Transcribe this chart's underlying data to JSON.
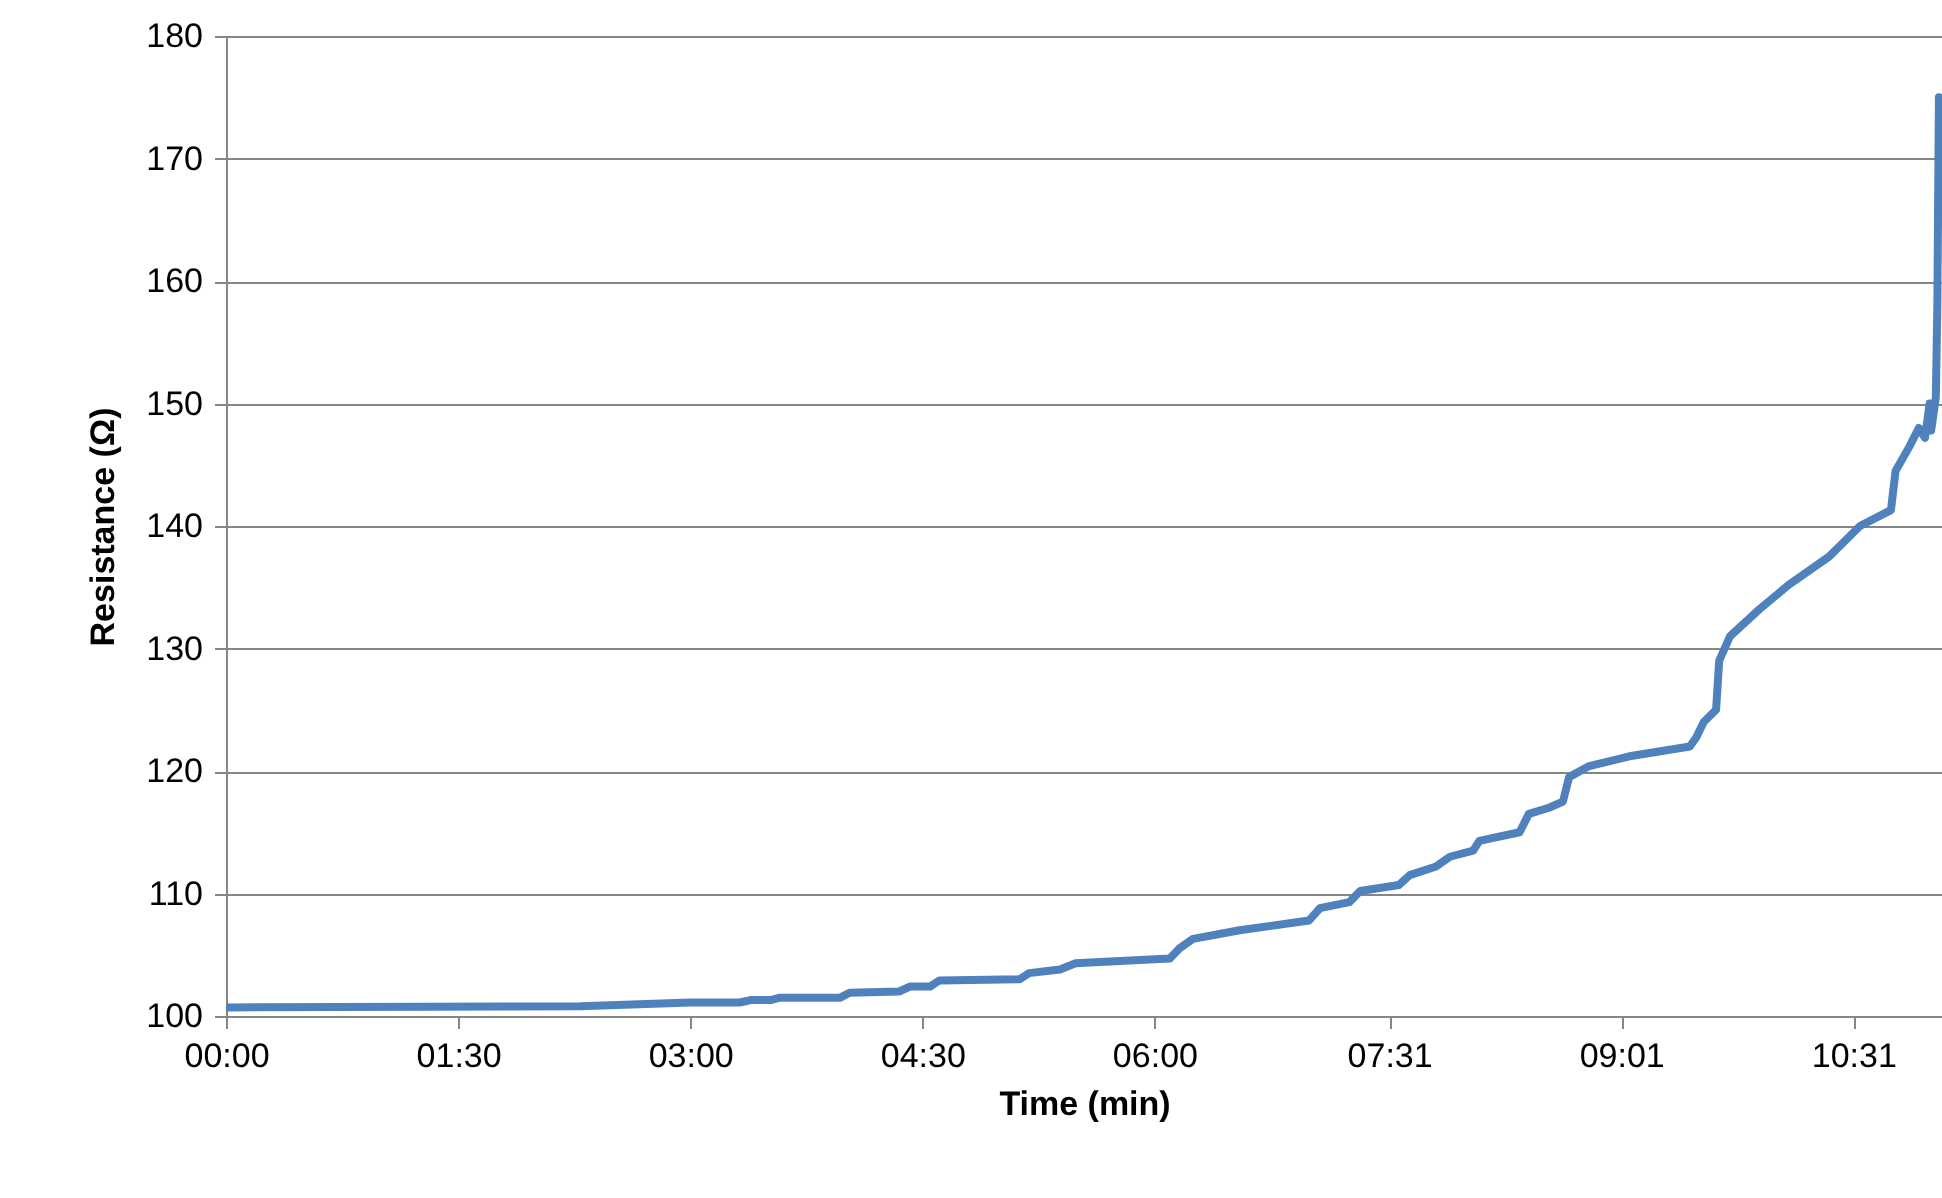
{
  "chart_data": {
    "type": "line",
    "xlabel": "Time (min)",
    "ylabel": "Resistance (Ω)",
    "x": [
      0,
      2.29,
      3.0,
      3.32,
      3.39,
      3.52,
      3.58,
      3.97,
      4.03,
      4.35,
      4.42,
      4.55,
      4.61,
      5.13,
      5.19,
      5.39,
      5.49,
      6.1,
      6.16,
      6.25,
      6.55,
      7.0,
      7.07,
      7.26,
      7.33,
      7.58,
      7.65,
      7.82,
      7.91,
      8.06,
      8.1,
      8.36,
      8.42,
      8.55,
      8.64,
      8.68,
      8.81,
      9.07,
      9.46,
      9.5,
      9.55,
      9.63,
      9.65,
      9.72,
      9.91,
      10.1,
      10.36,
      10.56,
      10.76,
      10.79,
      10.88,
      10.94,
      10.98,
      11.01,
      11.02,
      11.05,
      11.06,
      11.07
    ],
    "series": [
      {
        "color": "#4f81bd",
        "values": [
          100.7,
          100.8,
          101.1,
          101.1,
          101.3,
          101.3,
          101.5,
          101.5,
          101.9,
          102.0,
          102.4,
          102.4,
          102.9,
          103.0,
          103.5,
          103.8,
          104.3,
          104.7,
          105.5,
          106.3,
          107.0,
          107.8,
          108.8,
          109.3,
          110.2,
          110.7,
          111.5,
          112.2,
          113.0,
          113.5,
          114.3,
          115.0,
          116.5,
          117.0,
          117.5,
          119.5,
          120.4,
          121.2,
          122.0,
          122.7,
          124.0,
          125.0,
          129.0,
          131.0,
          133.2,
          135.2,
          137.5,
          140.0,
          141.3,
          144.5,
          146.5,
          148.0,
          147.2,
          150.0,
          147.8,
          150.5,
          158,
          175
        ]
      }
    ],
    "xlim": [
      0,
      11.09
    ],
    "xticks": [
      {
        "value": 0,
        "label": "00:00"
      },
      {
        "value": 1.5,
        "label": "01:30"
      },
      {
        "value": 3,
        "label": "03:00"
      },
      {
        "value": 4.5,
        "label": "04:30"
      },
      {
        "value": 6,
        "label": "06:00"
      },
      {
        "value": 7.5167,
        "label": "07:31"
      },
      {
        "value": 9.0167,
        "label": "09:01"
      },
      {
        "value": 10.5167,
        "label": "10:31"
      }
    ],
    "ylim": [
      100,
      180
    ],
    "yticks": [
      100,
      110,
      120,
      130,
      140,
      150,
      160,
      170,
      180
    ],
    "grid": "y",
    "marker": "none",
    "line_style": "solid"
  }
}
